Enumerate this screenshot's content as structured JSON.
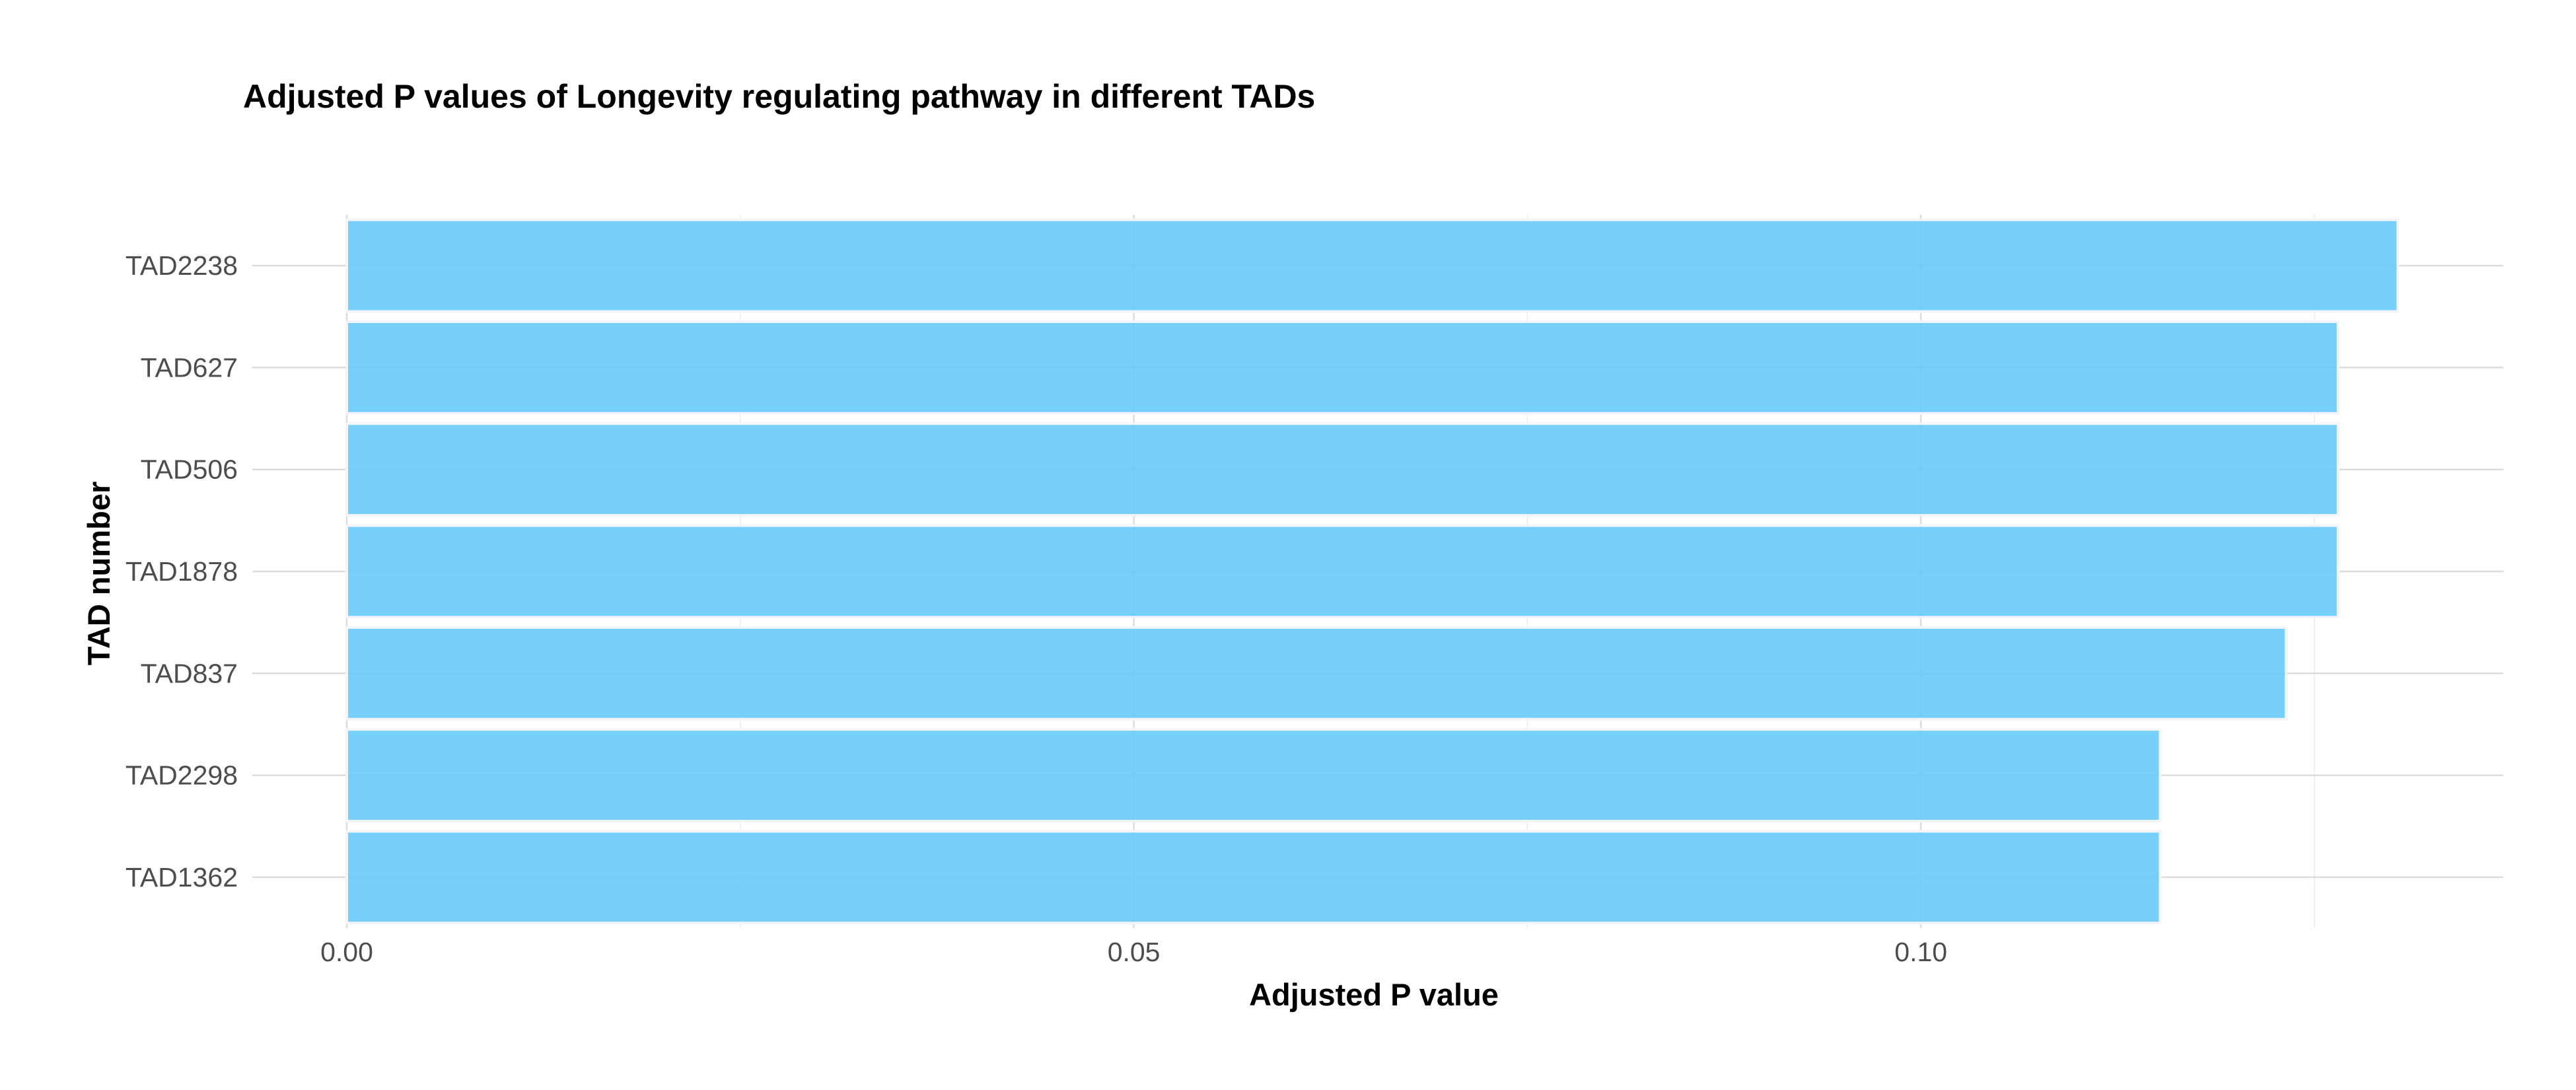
{
  "chart_data": {
    "type": "bar",
    "orientation": "horizontal",
    "title": "Adjusted P values of Longevity regulating pathway in different TADs",
    "xlabel": "Adjusted P value",
    "ylabel": "TAD number",
    "categories": [
      "TAD2238",
      "TAD627",
      "TAD506",
      "TAD1878",
      "TAD837",
      "TAD2298",
      "TAD1362"
    ],
    "values": [
      0.1303,
      0.1265,
      0.1265,
      0.1265,
      0.1232,
      0.1152,
      0.1152
    ],
    "xlim": [
      0,
      0.137
    ],
    "xticks": [
      0.0,
      0.05,
      0.1
    ],
    "xtick_labels": [
      "0.00",
      "0.05",
      "0.10"
    ],
    "grid": true,
    "legend": "none",
    "bar_color": "#64c8fa"
  }
}
